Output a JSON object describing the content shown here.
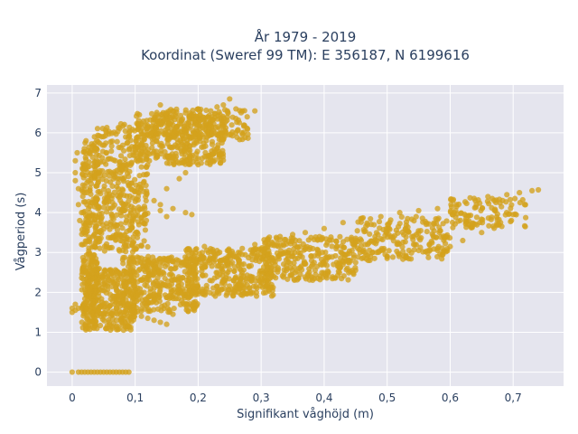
{
  "chart_data": {
    "type": "scatter",
    "title": "År 1979 - 2019",
    "subtitle": "Koordinat (Sweref 99 TM): E 356187, N 6199616",
    "xlabel": "Signifikant våghöjd (m)",
    "ylabel": "Vågperiod (s)",
    "xlim": [
      -0.04,
      0.78
    ],
    "ylim": [
      -0.35,
      7.2
    ],
    "x_ticks": [
      0,
      0.1,
      0.2,
      0.3,
      0.4,
      0.5,
      0.6,
      0.7
    ],
    "x_tick_labels": [
      "0",
      "0,1",
      "0,2",
      "0,3",
      "0,4",
      "0,5",
      "0,6",
      "0,7"
    ],
    "y_ticks": [
      0,
      1,
      2,
      3,
      4,
      5,
      6,
      7
    ],
    "y_tick_labels": [
      "0",
      "1",
      "2",
      "3",
      "4",
      "5",
      "6",
      "7"
    ],
    "grid": true,
    "marker_color": "#d4a21c",
    "plot_bg": "#e5e5ee",
    "series": [
      {
        "points": [
          [
            0.0,
            0.0
          ],
          [
            0.01,
            0.0
          ],
          [
            0.015,
            0.0
          ],
          [
            0.02,
            0.0
          ],
          [
            0.025,
            0.0
          ],
          [
            0.03,
            0.0
          ],
          [
            0.035,
            0.0
          ],
          [
            0.04,
            0.0
          ],
          [
            0.045,
            0.0
          ],
          [
            0.05,
            0.0
          ],
          [
            0.055,
            0.0
          ],
          [
            0.06,
            0.0
          ],
          [
            0.065,
            0.0
          ],
          [
            0.07,
            0.0
          ],
          [
            0.075,
            0.0
          ],
          [
            0.08,
            0.0
          ],
          [
            0.085,
            0.0
          ],
          [
            0.09,
            0.0
          ],
          [
            0.0,
            1.5
          ],
          [
            0.0,
            1.6
          ],
          [
            0.005,
            1.55
          ],
          [
            0.005,
            1.7
          ],
          [
            0.01,
            1.6
          ],
          [
            0.005,
            5.0
          ],
          [
            0.005,
            5.3
          ],
          [
            0.005,
            4.8
          ],
          [
            0.008,
            5.5
          ],
          [
            0.01,
            4.2
          ],
          [
            0.01,
            4.6
          ],
          [
            0.012,
            3.8
          ],
          [
            0.015,
            3.2
          ],
          [
            0.015,
            4.0
          ],
          [
            0.018,
            3.5
          ],
          [
            0.02,
            2.8
          ],
          [
            0.02,
            4.5
          ],
          [
            0.02,
            5.2
          ],
          [
            0.022,
            5.8
          ],
          [
            0.25,
            6.85
          ],
          [
            0.24,
            6.7
          ],
          [
            0.23,
            6.65
          ],
          [
            0.26,
            6.6
          ],
          [
            0.27,
            6.55
          ],
          [
            0.29,
            6.55
          ],
          [
            0.14,
            6.7
          ],
          [
            0.16,
            6.55
          ],
          [
            0.18,
            6.5
          ],
          [
            0.2,
            6.6
          ],
          [
            0.22,
            6.55
          ],
          [
            0.26,
            6.0
          ],
          [
            0.25,
            5.95
          ],
          [
            0.23,
            5.6
          ],
          [
            0.22,
            5.4
          ],
          [
            0.2,
            5.2
          ],
          [
            0.18,
            5.0
          ],
          [
            0.17,
            4.85
          ],
          [
            0.15,
            4.6
          ],
          [
            0.13,
            4.3
          ],
          [
            0.14,
            4.2
          ],
          [
            0.16,
            4.1
          ],
          [
            0.18,
            4.0
          ],
          [
            0.19,
            3.95
          ],
          [
            0.15,
            3.9
          ],
          [
            0.14,
            4.05
          ],
          [
            0.1,
            1.5
          ],
          [
            0.11,
            1.4
          ],
          [
            0.13,
            1.3
          ],
          [
            0.14,
            1.25
          ],
          [
            0.15,
            1.2
          ],
          [
            0.16,
            1.45
          ],
          [
            0.12,
            1.35
          ],
          [
            0.09,
            1.4
          ],
          [
            0.21,
            3.15
          ],
          [
            0.23,
            3.05
          ],
          [
            0.25,
            3.0
          ],
          [
            0.27,
            3.1
          ],
          [
            0.29,
            3.2
          ],
          [
            0.31,
            3.3
          ],
          [
            0.33,
            3.4
          ],
          [
            0.35,
            3.45
          ],
          [
            0.37,
            3.5
          ],
          [
            0.4,
            3.6
          ],
          [
            0.43,
            3.75
          ],
          [
            0.46,
            3.85
          ],
          [
            0.49,
            3.9
          ],
          [
            0.52,
            4.0
          ],
          [
            0.55,
            4.05
          ],
          [
            0.58,
            4.1
          ],
          [
            0.61,
            4.2
          ],
          [
            0.64,
            4.3
          ],
          [
            0.66,
            4.4
          ],
          [
            0.69,
            4.45
          ],
          [
            0.71,
            4.5
          ],
          [
            0.73,
            4.55
          ],
          [
            0.74,
            4.57
          ],
          [
            0.3,
            2.35
          ],
          [
            0.32,
            2.4
          ],
          [
            0.34,
            2.55
          ],
          [
            0.36,
            2.6
          ],
          [
            0.38,
            2.65
          ],
          [
            0.4,
            2.7
          ],
          [
            0.42,
            2.75
          ],
          [
            0.44,
            2.8
          ],
          [
            0.46,
            2.85
          ],
          [
            0.48,
            2.85
          ],
          [
            0.5,
            2.9
          ],
          [
            0.52,
            2.95
          ],
          [
            0.55,
            3.05
          ],
          [
            0.58,
            3.1
          ],
          [
            0.6,
            3.15
          ],
          [
            0.62,
            3.3
          ],
          [
            0.65,
            3.5
          ],
          [
            0.68,
            3.75
          ],
          [
            0.7,
            3.95
          ],
          [
            0.43,
            2.7
          ],
          [
            0.45,
            2.75
          ],
          [
            0.47,
            2.8
          ],
          [
            0.5,
            2.85
          ],
          [
            0.53,
            2.9
          ],
          [
            0.58,
            3.05
          ]
        ],
        "regions": [
          {
            "x0": 0.015,
            "x1": 0.04,
            "y0": 1.1,
            "y1": 5.8,
            "n": 260
          },
          {
            "x0": 0.035,
            "x1": 0.12,
            "y0": 3.0,
            "y1": 6.25,
            "n": 420
          },
          {
            "x0": 0.1,
            "x1": 0.24,
            "y0": 5.2,
            "y1": 6.5,
            "n": 330
          },
          {
            "x0": 0.12,
            "x1": 0.28,
            "y0": 5.8,
            "y1": 6.6,
            "n": 180
          },
          {
            "x0": 0.02,
            "x1": 0.1,
            "y0": 1.05,
            "y1": 2.6,
            "n": 320
          },
          {
            "x0": 0.08,
            "x1": 0.2,
            "y0": 1.5,
            "y1": 2.9,
            "n": 360
          },
          {
            "x0": 0.18,
            "x1": 0.32,
            "y0": 1.9,
            "y1": 3.1,
            "n": 340
          },
          {
            "x0": 0.3,
            "x1": 0.45,
            "y0": 2.3,
            "y1": 3.4,
            "n": 280
          },
          {
            "x0": 0.45,
            "x1": 0.6,
            "y0": 2.8,
            "y1": 3.9,
            "n": 200
          },
          {
            "x0": 0.6,
            "x1": 0.72,
            "y0": 3.6,
            "y1": 4.4,
            "n": 110
          }
        ]
      }
    ]
  }
}
